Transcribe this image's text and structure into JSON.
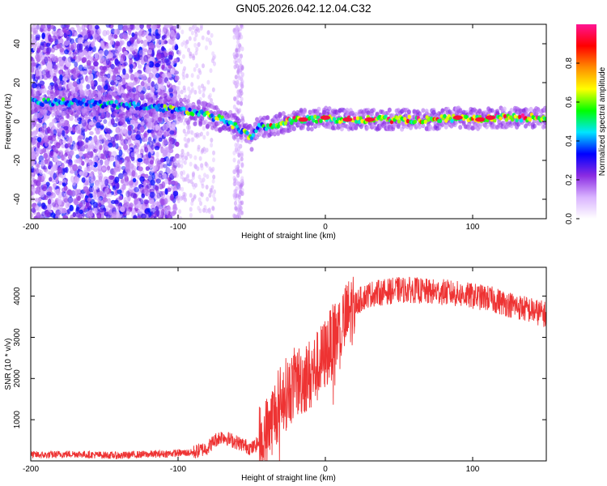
{
  "title": "GN05.2026.042.12.04.C32",
  "chart_data": [
    {
      "type": "heatmap",
      "name": "spectrogram",
      "xlabel": "Height of straight line (km)",
      "ylabel": "Frequency (Hz)",
      "xlim": [
        -200,
        150
      ],
      "ylim": [
        -50,
        50
      ],
      "xticks": [
        -200,
        -100,
        0,
        100
      ],
      "yticks": [
        -40,
        -20,
        0,
        20,
        40
      ],
      "colorbar": {
        "label": "Normalized spectral amplitude",
        "range": [
          0.0,
          1.0
        ],
        "ticks": [
          0.0,
          0.2,
          0.4,
          0.6,
          0.8
        ],
        "tick_labels": [
          "0.0",
          "0.2",
          "0.4",
          "0.6",
          "0.8"
        ],
        "colors": [
          "#ffffff",
          "#d9b3ff",
          "#8a2be2",
          "#0000ff",
          "#00e5ff",
          "#00ff00",
          "#ffff00",
          "#ff8c00",
          "#ff0000",
          "#ff1493"
        ]
      },
      "ridge": {
        "x": [
          -200,
          -175,
          -150,
          -125,
          -110,
          -100,
          -90,
          -80,
          -70,
          -60,
          -55,
          -50,
          -45,
          -40,
          -30,
          -20,
          -10,
          0,
          10,
          30,
          50,
          70,
          90,
          105,
          110,
          130,
          150
        ],
        "y": [
          10,
          10,
          9,
          8,
          7,
          6,
          5,
          3,
          1,
          -3,
          -6,
          -9,
          -2,
          -3,
          -1,
          1,
          1,
          2,
          1,
          1,
          1,
          1,
          2,
          1,
          2,
          2,
          2
        ]
      }
    },
    {
      "type": "line",
      "name": "snr",
      "xlabel": "Height of straight line (km)",
      "ylabel": "SNR (10 * v/v)",
      "xlim": [
        -200,
        150
      ],
      "ylim": [
        0,
        4700
      ],
      "xticks": [
        -200,
        -100,
        0,
        100
      ],
      "yticks": [
        1000,
        2000,
        3000,
        4000
      ],
      "color": "#ee3333",
      "series": [
        {
          "name": "SNR",
          "x": [
            -200,
            -190,
            -180,
            -170,
            -160,
            -150,
            -140,
            -130,
            -120,
            -110,
            -100,
            -90,
            -80,
            -75,
            -70,
            -65,
            -60,
            -55,
            -50,
            -45,
            -40,
            -35,
            -30,
            -25,
            -20,
            -15,
            -10,
            -5,
            0,
            5,
            10,
            15,
            20,
            25,
            30,
            40,
            50,
            60,
            70,
            80,
            90,
            100,
            110,
            120,
            130,
            140,
            150
          ],
          "y": [
            150,
            140,
            160,
            170,
            150,
            140,
            130,
            150,
            160,
            170,
            190,
            200,
            320,
            500,
            600,
            520,
            450,
            380,
            300,
            450,
            700,
            1100,
            1500,
            1700,
            1900,
            2000,
            2100,
            2300,
            2600,
            2900,
            3200,
            3500,
            3800,
            3950,
            4050,
            4100,
            4150,
            4150,
            4100,
            4100,
            4050,
            4000,
            3950,
            3850,
            3750,
            3650,
            3550
          ]
        }
      ]
    }
  ]
}
